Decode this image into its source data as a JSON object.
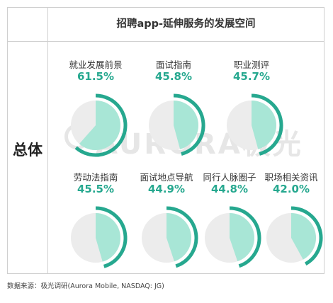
{
  "title": "招聘app-延伸服务的发展空间",
  "row_label": "总体",
  "source": "数据来源：极光调研(Aurora Mobile, NASDAQ: JG)",
  "watermark": "AURORA极光",
  "colors": {
    "accent": "#26a88f",
    "fill": "#a8e6d6",
    "empty": "#ececec",
    "border": "#cfcfcf"
  },
  "chart_data": {
    "type": "pie",
    "title": "招聘app-延伸服务的发展空间",
    "series_name": "总体",
    "categories": [
      "就业发展前景",
      "面试指南",
      "职业测评",
      "劳动法指南",
      "面试地点导航",
      "同行人脉圈子",
      "职场相关资讯"
    ],
    "values": [
      61.5,
      45.8,
      45.7,
      45.5,
      44.9,
      44.8,
      42.0
    ],
    "labels": [
      "61.5%",
      "45.8%",
      "45.7%",
      "45.5%",
      "44.9%",
      "44.8%",
      "42.0%"
    ],
    "unit": "%"
  }
}
